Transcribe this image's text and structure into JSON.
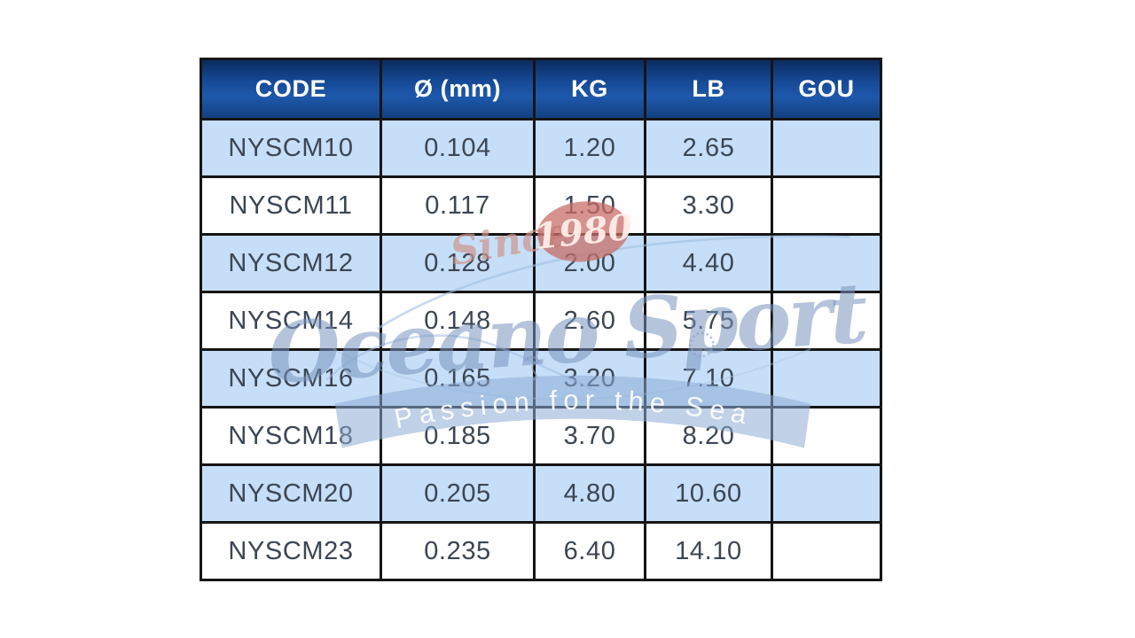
{
  "table": {
    "columns": [
      "CODE",
      "Ø (mm)",
      "KG",
      "LB",
      "GOU"
    ],
    "rows": [
      {
        "shaded": true,
        "cells": [
          "NYSCM10",
          "0.104",
          "1.20",
          "2.65",
          ""
        ]
      },
      {
        "shaded": false,
        "cells": [
          "NYSCM11",
          "0.117",
          "1.50",
          "3.30",
          ""
        ]
      },
      {
        "shaded": true,
        "cells": [
          "NYSCM12",
          "0.128",
          "2.00",
          "4.40",
          ""
        ]
      },
      {
        "shaded": false,
        "cells": [
          "NYSCM14",
          "0.148",
          "2.60",
          "5.75",
          ""
        ]
      },
      {
        "shaded": true,
        "cells": [
          "NYSCM16",
          "0.165",
          "3.20",
          "7.10",
          ""
        ]
      },
      {
        "shaded": false,
        "cells": [
          "NYSCM18",
          "0.185",
          "3.70",
          "8.20",
          ""
        ]
      },
      {
        "shaded": true,
        "cells": [
          "NYSCM20",
          "0.205",
          "4.80",
          "10.60",
          ""
        ]
      },
      {
        "shaded": false,
        "cells": [
          "NYSCM23",
          "0.235",
          "6.40",
          "14.10",
          ""
        ]
      }
    ],
    "colors": {
      "header_gradient_top": "#0a2a5c",
      "header_gradient_mid": "#1e58ab",
      "header_gradient_bottom": "#123f7d",
      "header_text": "#ffffff",
      "row_shaded": "#c6def7",
      "row_plain": "#fefefe",
      "cell_text": "#3c4654",
      "border": "#151515"
    }
  },
  "watermark": {
    "since_label": "Since",
    "year_label": "1980",
    "brand_label": "Oceano Sport",
    "tagline_label": "Passion for the Sea",
    "colors": {
      "brand_script": "#7894be",
      "since_script": "#cd968c",
      "year_badge": "#c76d68",
      "year_text": "#ffeee8",
      "ribbon": "#8cacd6",
      "ribbon_text": "#ffffff",
      "line_doodle": "#a0bedf"
    }
  }
}
